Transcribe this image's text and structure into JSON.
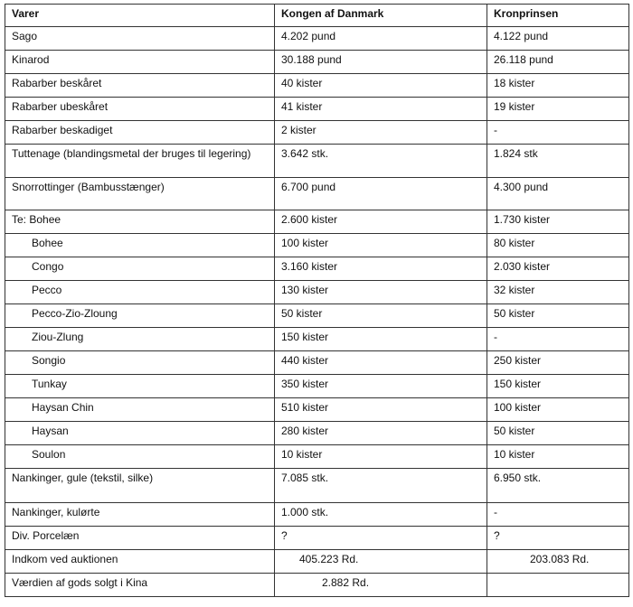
{
  "table": {
    "header": [
      "Varer",
      "Kongen af Danmark",
      "Kronprinsen"
    ],
    "rows": [
      [
        "Sago",
        "4.202 pund",
        "4.122 pund"
      ],
      [
        "Kinarod",
        "30.188 pund",
        "26.118 pund"
      ],
      [
        "Rabarber beskåret",
        "40 kister",
        "18 kister"
      ],
      [
        "Rabarber ubeskåret",
        "41 kister",
        "19 kister"
      ],
      [
        "Rabarber beskadiget",
        "2 kister",
        "-"
      ],
      [
        "Tuttenage (blandingsmetal der bruges til legering)",
        "3.642 stk.",
        "1.824 stk"
      ],
      [
        "Snorrottinger (Bambusstænger)",
        "6.700 pund",
        "4.300 pund"
      ],
      [
        "Te: Bohee",
        "2.600 kister",
        "1.730 kister"
      ],
      [
        "Bohee",
        "100 kister",
        "80 kister"
      ],
      [
        "Congo",
        "3.160 kister",
        "2.030 kister"
      ],
      [
        "Pecco",
        "130 kister",
        "32 kister"
      ],
      [
        "Pecco-Zio-Zloung",
        "50 kister",
        "50 kister"
      ],
      [
        "Ziou-Zlung",
        "150 kister",
        "-"
      ],
      [
        "Songio",
        "440 kister",
        "250 kister"
      ],
      [
        "Tunkay",
        "350 kister",
        "150 kister"
      ],
      [
        "Haysan Chin",
        "510 kister",
        "100 kister"
      ],
      [
        "Haysan",
        "280 kister",
        "50 kister"
      ],
      [
        "Soulon",
        "10 kister",
        "10 kister"
      ],
      [
        "Nankinger, gule (tekstil, silke)",
        "7.085 stk.",
        "6.950 stk."
      ],
      [
        "Nankinger, kulørte",
        "1.000 stk.",
        "-"
      ],
      [
        "Div. Porcelæn",
        "?",
        "?"
      ],
      [
        "Indkom ved auktionen",
        "405.223 Rd.",
        "203.083 Rd."
      ],
      [
        "Værdien af gods solgt i Kina",
        "2.882 Rd.",
        ""
      ]
    ]
  }
}
